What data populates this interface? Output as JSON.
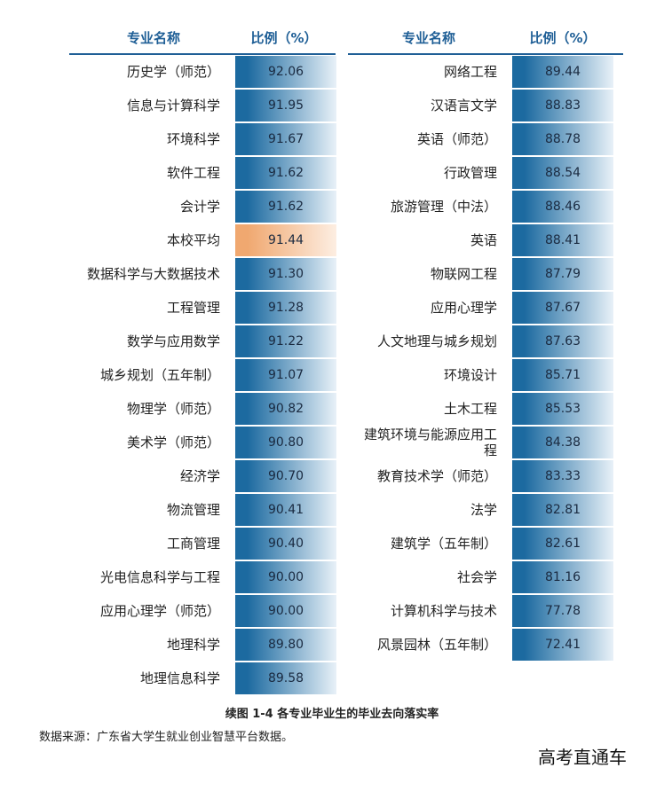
{
  "header": {
    "col_major": "专业名称",
    "col_ratio": "比例（%）"
  },
  "chart_data": {
    "type": "table",
    "title": "续图 1-4 各专业毕业生的毕业去向落实率",
    "columns": [
      "专业名称",
      "比例（%）"
    ],
    "unit": "%",
    "left_rows": [
      {
        "name": "历史学（师范）",
        "value": "92.06"
      },
      {
        "name": "信息与计算科学",
        "value": "91.95"
      },
      {
        "name": "环境科学",
        "value": "91.67"
      },
      {
        "name": "软件工程",
        "value": "91.62"
      },
      {
        "name": "会计学",
        "value": "91.62"
      },
      {
        "name": "本校平均",
        "value": "91.44",
        "highlight": true
      },
      {
        "name": "数据科学与大数据技术",
        "value": "91.30"
      },
      {
        "name": "工程管理",
        "value": "91.28"
      },
      {
        "name": "数学与应用数学",
        "value": "91.22"
      },
      {
        "name": "城乡规划（五年制）",
        "value": "91.07"
      },
      {
        "name": "物理学（师范）",
        "value": "90.82"
      },
      {
        "name": "美术学（师范）",
        "value": "90.80"
      },
      {
        "name": "经济学",
        "value": "90.70"
      },
      {
        "name": "物流管理",
        "value": "90.41"
      },
      {
        "name": "工商管理",
        "value": "90.40"
      },
      {
        "name": "光电信息科学与工程",
        "value": "90.00"
      },
      {
        "name": "应用心理学（师范）",
        "value": "90.00"
      },
      {
        "name": "地理科学",
        "value": "89.80"
      },
      {
        "name": "地理信息科学",
        "value": "89.58"
      }
    ],
    "right_rows": [
      {
        "name": "网络工程",
        "value": "89.44"
      },
      {
        "name": "汉语言文学",
        "value": "88.83"
      },
      {
        "name": "英语（师范）",
        "value": "88.78"
      },
      {
        "name": "行政管理",
        "value": "88.54"
      },
      {
        "name": "旅游管理（中法）",
        "value": "88.46"
      },
      {
        "name": "英语",
        "value": "88.41"
      },
      {
        "name": "物联网工程",
        "value": "87.79"
      },
      {
        "name": "应用心理学",
        "value": "87.67"
      },
      {
        "name": "人文地理与城乡规划",
        "value": "87.63"
      },
      {
        "name": "环境设计",
        "value": "85.71"
      },
      {
        "name": "土木工程",
        "value": "85.53"
      },
      {
        "name": "建筑环境与能源应用工程",
        "value": "84.38"
      },
      {
        "name": "教育技术学（师范）",
        "value": "83.33"
      },
      {
        "name": "法学",
        "value": "82.81"
      },
      {
        "name": "建筑学（五年制）",
        "value": "82.61"
      },
      {
        "name": "社会学",
        "value": "81.16"
      },
      {
        "name": "计算机科学与技术",
        "value": "77.78"
      },
      {
        "name": "风景园林（五年制）",
        "value": "72.41"
      }
    ],
    "colors": {
      "bar_dark": "#1c6aa0",
      "bar_light": "#e8f1f8",
      "highlight_dark": "#f0a870",
      "highlight_light": "#fdeee2",
      "header_text": "#1f5f96"
    }
  },
  "footer": {
    "caption": "续图 1-4 各专业毕业生的毕业去向落实率",
    "source": "数据来源：广东省大学生就业创业智慧平台数据。",
    "watermark": "高考直通车"
  }
}
